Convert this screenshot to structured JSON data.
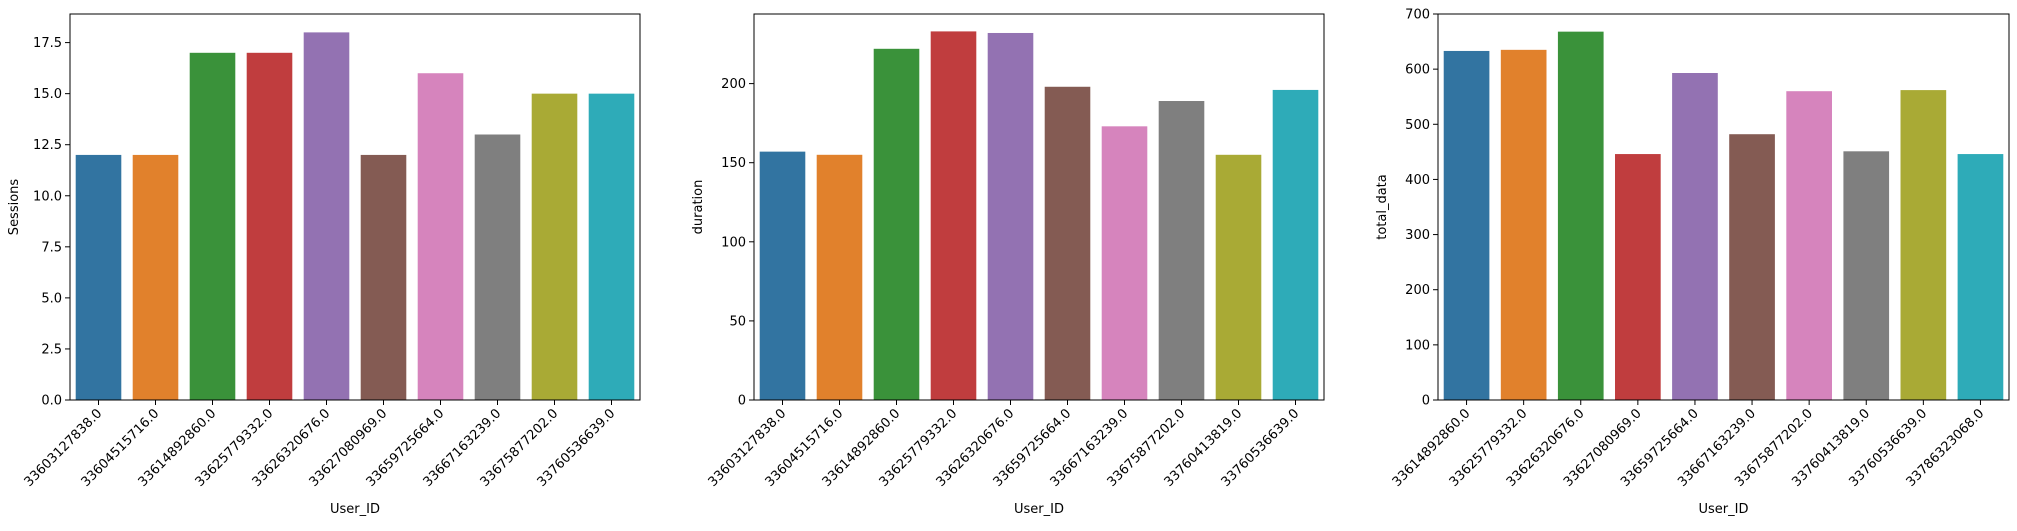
{
  "figure": {
    "xlabel": "User_ID"
  },
  "palette": [
    "#3274a1",
    "#e1812c",
    "#3a923a",
    "#c03d3e",
    "#9372b2",
    "#845b53",
    "#d684bd",
    "#7f7f7f",
    "#a9aa35",
    "#2eabb8"
  ],
  "chart_data": [
    {
      "type": "bar",
      "title": "",
      "xlabel": "User_ID",
      "ylabel": "Sessions",
      "ylim": [
        0,
        18.9
      ],
      "yticks": [
        0.0,
        2.5,
        5.0,
        7.5,
        10.0,
        12.5,
        15.0,
        17.5
      ],
      "ytick_labels": [
        "0.0",
        "2.5",
        "5.0",
        "7.5",
        "10.0",
        "12.5",
        "15.0",
        "17.5"
      ],
      "categories": [
        "33603127838.0",
        "33604515716.0",
        "33614892860.0",
        "33625779332.0",
        "33626320676.0",
        "33627080969.0",
        "33659725664.0",
        "33667163239.0",
        "33675877202.0",
        "33760536639.0"
      ],
      "values": [
        12,
        12,
        17,
        17,
        18,
        12,
        16,
        13,
        15,
        15
      ],
      "grid": false,
      "legend": "none"
    },
    {
      "type": "bar",
      "title": "",
      "xlabel": "User_ID",
      "ylabel": "duration",
      "ylim": [
        0,
        244
      ],
      "yticks": [
        0,
        50,
        100,
        150,
        200
      ],
      "ytick_labels": [
        "0",
        "50",
        "100",
        "150",
        "200"
      ],
      "categories": [
        "33603127838.0",
        "33604515716.0",
        "33614892860.0",
        "33625779332.0",
        "33626320676.0",
        "33659725664.0",
        "33667163239.0",
        "33675877202.0",
        "33760413819.0",
        "33760536639.0"
      ],
      "values": [
        157,
        155,
        222,
        233,
        232,
        198,
        173,
        189,
        155,
        196
      ],
      "grid": false,
      "legend": "none"
    },
    {
      "type": "bar",
      "title": "",
      "xlabel": "User_ID",
      "ylabel": "total_data",
      "ylim": [
        0,
        700
      ],
      "yticks": [
        0,
        100,
        200,
        300,
        400,
        500,
        600,
        700
      ],
      "ytick_labels": [
        "0",
        "100",
        "200",
        "300",
        "400",
        "500",
        "600",
        "700"
      ],
      "categories": [
        "33614892860.0",
        "33625779332.0",
        "33626320676.0",
        "33627080969.0",
        "33659725664.0",
        "33667163239.0",
        "33675877202.0",
        "33760413819.0",
        "33760536639.0",
        "33786323068.0"
      ],
      "values": [
        633,
        635,
        668,
        446,
        593,
        482,
        560,
        451,
        562,
        446
      ],
      "grid": false,
      "legend": "none"
    }
  ]
}
